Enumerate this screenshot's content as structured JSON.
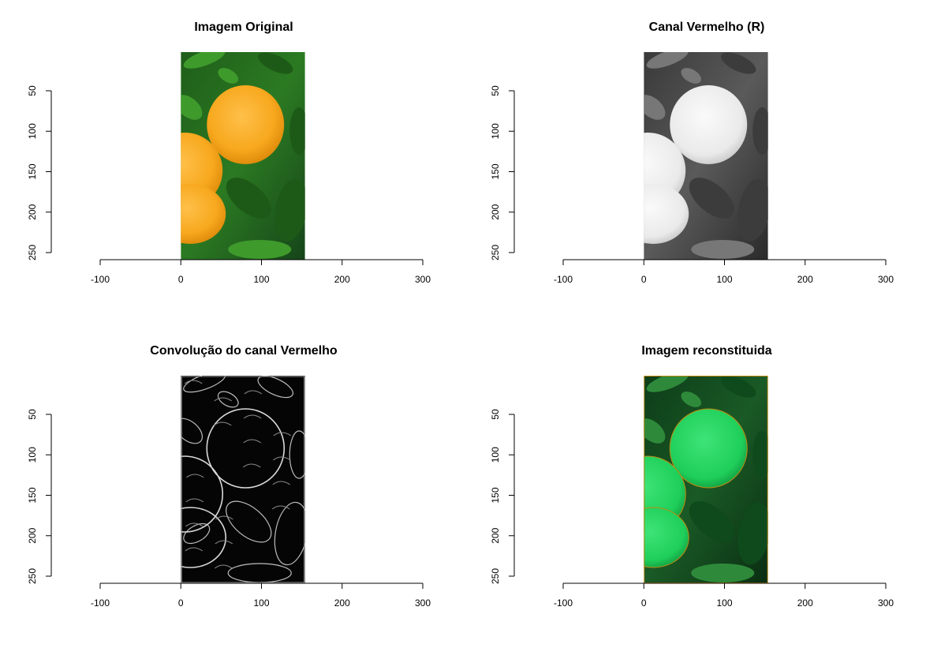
{
  "chart_data": [
    {
      "type": "image",
      "title": "Imagem Original",
      "image_style": "original",
      "xticks": [
        "-100",
        "0",
        "100",
        "200",
        "300"
      ],
      "yticks": [
        "50",
        "100",
        "150",
        "200",
        "250"
      ],
      "xlim": [
        -100,
        300
      ],
      "image_extent_x": [
        0,
        154
      ],
      "image_extent_y": [
        0,
        256
      ]
    },
    {
      "type": "image",
      "title": "Canal Vermelho (R)",
      "image_style": "grayscale",
      "xticks": [
        "-100",
        "0",
        "100",
        "200",
        "300"
      ],
      "yticks": [
        "50",
        "100",
        "150",
        "200",
        "250"
      ],
      "xlim": [
        -100,
        300
      ],
      "image_extent_x": [
        0,
        154
      ],
      "image_extent_y": [
        0,
        256
      ]
    },
    {
      "type": "image",
      "title": "Convolução do canal Vermelho",
      "image_style": "edges",
      "xticks": [
        "-100",
        "0",
        "100",
        "200",
        "300"
      ],
      "yticks": [
        "50",
        "100",
        "150",
        "200",
        "250"
      ],
      "xlim": [
        -100,
        300
      ],
      "image_extent_x": [
        0,
        154
      ],
      "image_extent_y": [
        0,
        256
      ]
    },
    {
      "type": "image",
      "title": "Imagem reconstituida",
      "image_style": "green",
      "xticks": [
        "-100",
        "0",
        "100",
        "200",
        "300"
      ],
      "yticks": [
        "50",
        "100",
        "150",
        "200",
        "250"
      ],
      "xlim": [
        -100,
        300
      ],
      "image_extent_x": [
        0,
        154
      ],
      "image_extent_y": [
        0,
        256
      ]
    }
  ]
}
